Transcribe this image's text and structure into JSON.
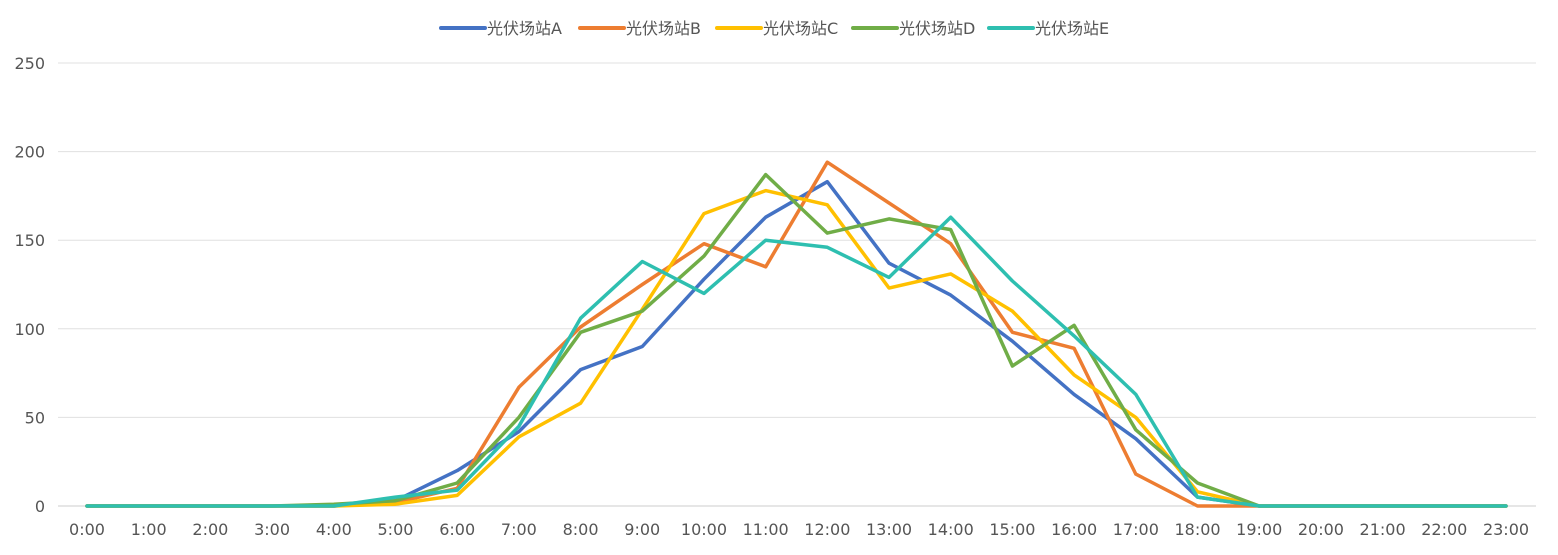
{
  "chart_data": {
    "type": "line",
    "title": "",
    "xlabel": "",
    "ylabel": "",
    "ylim": [
      0,
      250
    ],
    "yticks": [
      0,
      50,
      100,
      150,
      200,
      250
    ],
    "grid": true,
    "legend_position": "top-center",
    "categories": [
      "0:00",
      "1:00",
      "2:00",
      "3:00",
      "4:00",
      "5:00",
      "6:00",
      "7:00",
      "8:00",
      "9:00",
      "10:00",
      "11:00",
      "12:00",
      "13:00",
      "14:00",
      "15:00",
      "16:00",
      "17:00",
      "18:00",
      "19:00",
      "20:00",
      "21:00",
      "22:00",
      "23:00"
    ],
    "series": [
      {
        "name": "光伏场站A",
        "color": "#4472C4",
        "values": [
          0,
          0,
          0,
          0,
          0,
          3,
          20,
          42,
          77,
          90,
          128,
          163,
          183,
          137,
          119,
          93,
          63,
          38,
          5,
          0,
          0,
          0,
          0,
          0
        ]
      },
      {
        "name": "光伏场站B",
        "color": "#ED7D31",
        "values": [
          0,
          0,
          0,
          0,
          0,
          2,
          10,
          67,
          101,
          125,
          148,
          135,
          194,
          171,
          148,
          98,
          89,
          18,
          0,
          0,
          0,
          0,
          0,
          0
        ]
      },
      {
        "name": "光伏场站C",
        "color": "#FFC000",
        "values": [
          0,
          0,
          0,
          0,
          0,
          1,
          6,
          39,
          58,
          111,
          165,
          178,
          170,
          123,
          131,
          110,
          74,
          50,
          8,
          0,
          0,
          0,
          0,
          0
        ]
      },
      {
        "name": "光伏场站D",
        "color": "#70AD47",
        "values": [
          0,
          0,
          0,
          0,
          1,
          3,
          13,
          50,
          98,
          110,
          141,
          187,
          154,
          162,
          156,
          79,
          102,
          43,
          13,
          0,
          0,
          0,
          0,
          0
        ]
      },
      {
        "name": "光伏场站E",
        "color": "#2EBFB0",
        "values": [
          0,
          0,
          0,
          0,
          0,
          5,
          9,
          45,
          106,
          138,
          120,
          150,
          146,
          129,
          163,
          127,
          96,
          63,
          5,
          0,
          0,
          0,
          0,
          0
        ]
      }
    ]
  }
}
